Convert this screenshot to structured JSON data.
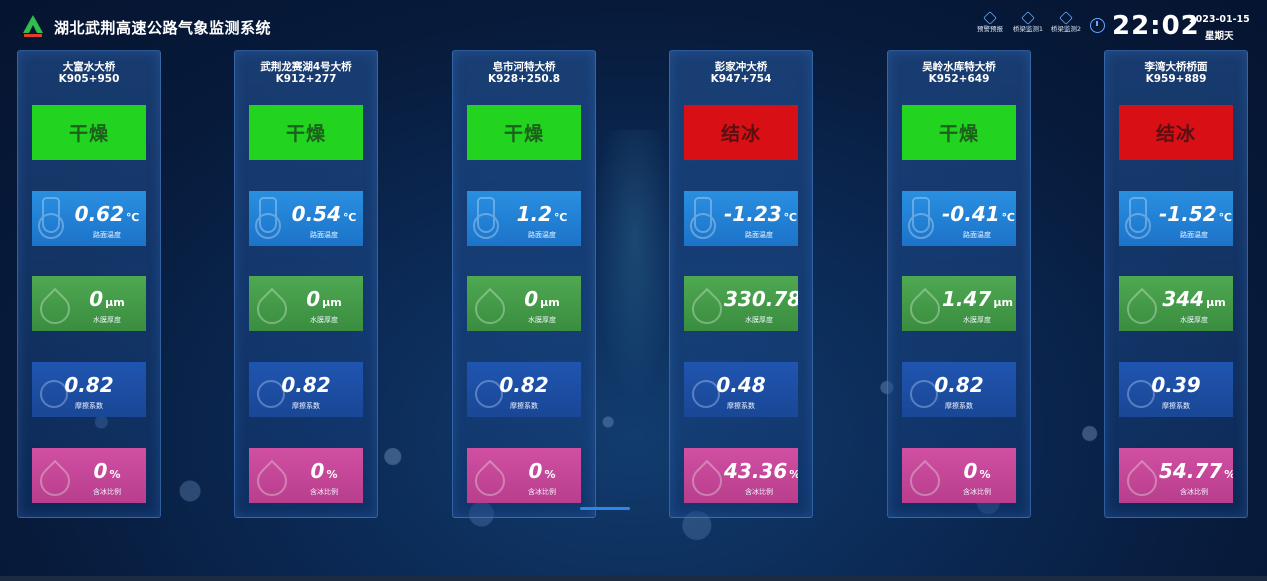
{
  "header": {
    "title": "湖北武荆高速公路气象监测系统",
    "icons": [
      {
        "label": "预警预报",
        "icon": "warning-forecast-icon"
      },
      {
        "label": "桥梁监测1",
        "icon": "bridge-monitor-icon"
      },
      {
        "label": "桥梁监测2",
        "icon": "bridge-monitor-icon"
      }
    ],
    "time": "22:02",
    "date": "2023-01-15",
    "weekday": "星期天"
  },
  "colors": {
    "dry": "#22d41f",
    "ice": "#d80f14",
    "temp": "#1c73c9",
    "water": "#3a8d3f",
    "friction": "#1a4796",
    "ice_ratio": "#b93e8d"
  },
  "labels": {
    "temp": "路面温度",
    "water": "水膜厚度",
    "friction": "摩擦系数",
    "ice": "含冰比例"
  },
  "units": {
    "temp": "℃",
    "water": "μm",
    "ice": "%"
  },
  "stations": [
    {
      "name": "大富水大桥",
      "code": "K905+950",
      "status": "干燥",
      "status_type": "dry",
      "temp": "0.62",
      "water": "0",
      "friction": "0.82",
      "ice": "0"
    },
    {
      "name": "武荆龙赛湖4号大桥",
      "code": "K912+277",
      "status": "干燥",
      "status_type": "dry",
      "temp": "0.54",
      "water": "0",
      "friction": "0.82",
      "ice": "0"
    },
    {
      "name": "皂市河特大桥",
      "code": "K928+250.8",
      "status": "干燥",
      "status_type": "dry",
      "temp": "1.2",
      "water": "0",
      "friction": "0.82",
      "ice": "0"
    },
    {
      "name": "彭家冲大桥",
      "code": "K947+754",
      "status": "结冰",
      "status_type": "ice",
      "temp": "-1.23",
      "water": "330.78",
      "friction": "0.48",
      "ice": "43.36"
    },
    {
      "name": "吴岭水库特大桥",
      "code": "K952+649",
      "status": "干燥",
      "status_type": "dry",
      "temp": "-0.41",
      "water": "1.47",
      "friction": "0.82",
      "ice": "0"
    },
    {
      "name": "李湾大桥桥面",
      "code": "K959+889",
      "status": "结冰",
      "status_type": "ice",
      "temp": "-1.52",
      "water": "344",
      "friction": "0.39",
      "ice": "54.77"
    }
  ]
}
